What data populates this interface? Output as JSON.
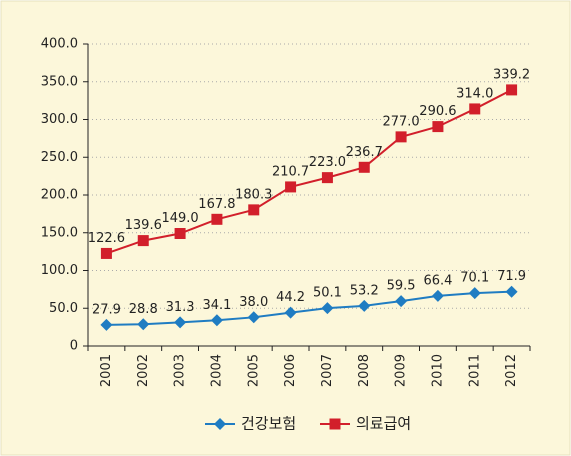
{
  "chart_data": {
    "type": "line",
    "categories": [
      "2001",
      "2002",
      "2003",
      "2004",
      "2005",
      "2006",
      "2007",
      "2008",
      "2009",
      "2010",
      "2011",
      "2012"
    ],
    "series": [
      {
        "name": "건강보험",
        "color": "#1f7cc2",
        "marker": "diamond",
        "values": [
          27.9,
          28.8,
          31.3,
          34.1,
          38.0,
          44.2,
          50.1,
          53.2,
          59.5,
          66.4,
          70.1,
          71.9
        ],
        "value_labels": [
          "27.9",
          "28.8",
          "31.3",
          "34.1",
          "38.0",
          "44.2",
          "50.1",
          "53.2",
          "59.5",
          "66.4",
          "70.1",
          "71.9"
        ]
      },
      {
        "name": "의료급여",
        "color": "#d21f2b",
        "marker": "square",
        "values": [
          122.6,
          139.6,
          149.0,
          167.8,
          180.3,
          210.7,
          223.0,
          236.7,
          277.0,
          290.6,
          314.0,
          339.2
        ],
        "value_labels": [
          "122.6",
          "139.6",
          "149.0",
          "167.8",
          "180.3",
          "210.7",
          "223.0",
          "236.7",
          "277.0",
          "290.6",
          "314.0",
          "339.2"
        ]
      }
    ],
    "ylim": [
      0,
      400
    ],
    "yticks": [
      0,
      {
        "value": 50,
        "label": "50.0"
      },
      {
        "value": 100,
        "label": "100.0"
      },
      {
        "value": 150,
        "label": "150.0"
      },
      {
        "value": 200,
        "label": "200.0"
      },
      {
        "value": 250,
        "label": "250.0"
      },
      {
        "value": 300,
        "label": "300.0"
      },
      {
        "value": 350,
        "label": "350.0"
      },
      {
        "value": 400,
        "label": "400.0"
      }
    ],
    "grid": true,
    "legend": "bottom"
  }
}
